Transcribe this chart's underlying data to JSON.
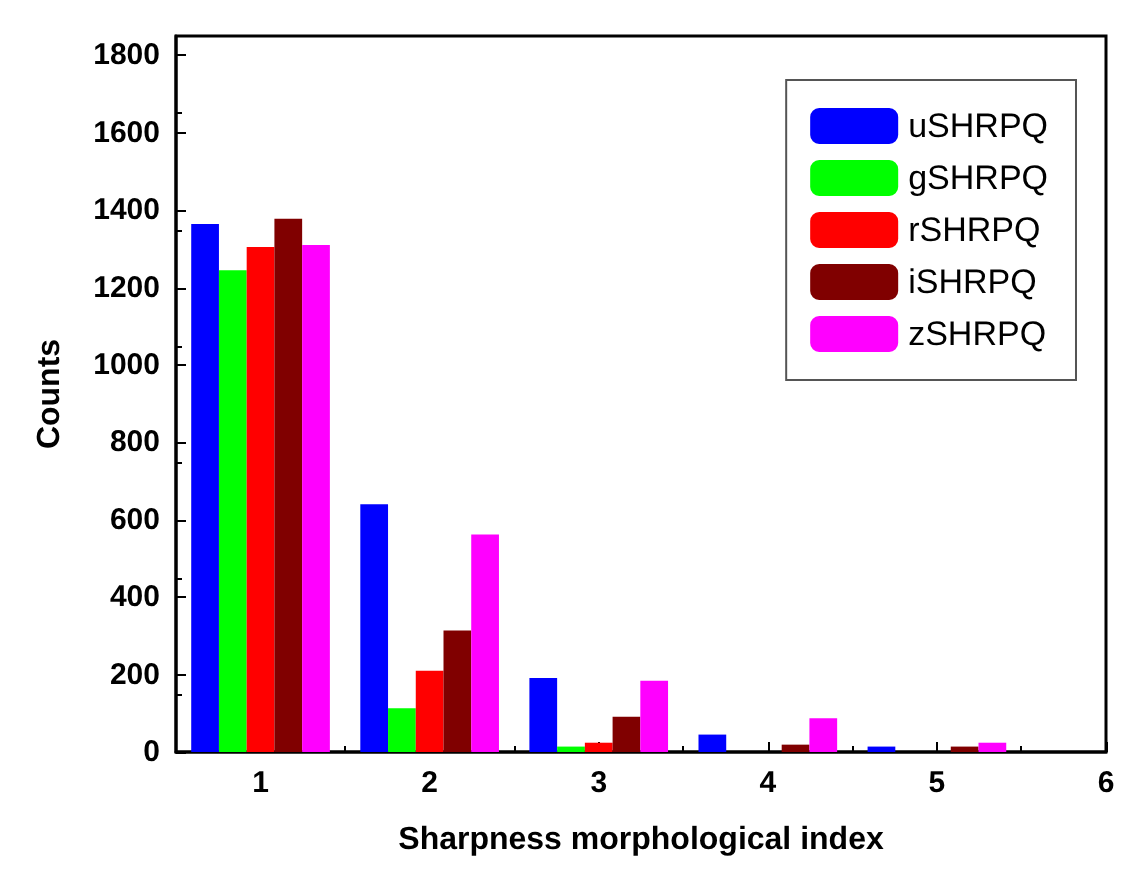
{
  "chart_data": {
    "type": "bar",
    "xlabel": "Sharpness morphological index",
    "ylabel": "Counts",
    "x": [
      1,
      2,
      3,
      4,
      5
    ],
    "series": [
      {
        "name": "uSHRPQ",
        "color": "#0000ff",
        "values": [
          1364,
          640,
          191,
          45,
          14
        ]
      },
      {
        "name": "gSHRPQ",
        "color": "#00ff00",
        "values": [
          1245,
          113,
          14,
          0,
          0
        ]
      },
      {
        "name": "rSHRPQ",
        "color": "#ff0000",
        "values": [
          1305,
          210,
          24,
          0,
          0
        ]
      },
      {
        "name": "iSHRPQ",
        "color": "#800000",
        "values": [
          1378,
          314,
          91,
          19,
          14
        ]
      },
      {
        "name": "zSHRPQ",
        "color": "#ff00ff",
        "values": [
          1310,
          562,
          184,
          87,
          24
        ]
      }
    ],
    "xlim": [
      0.5,
      6
    ],
    "xticks": [
      1,
      2,
      3,
      4,
      5,
      6
    ],
    "ylim": [
      0,
      1850
    ],
    "yticks": [
      0,
      200,
      400,
      600,
      800,
      1000,
      1200,
      1400,
      1600,
      1800
    ],
    "grid": false,
    "legend": "top right"
  }
}
